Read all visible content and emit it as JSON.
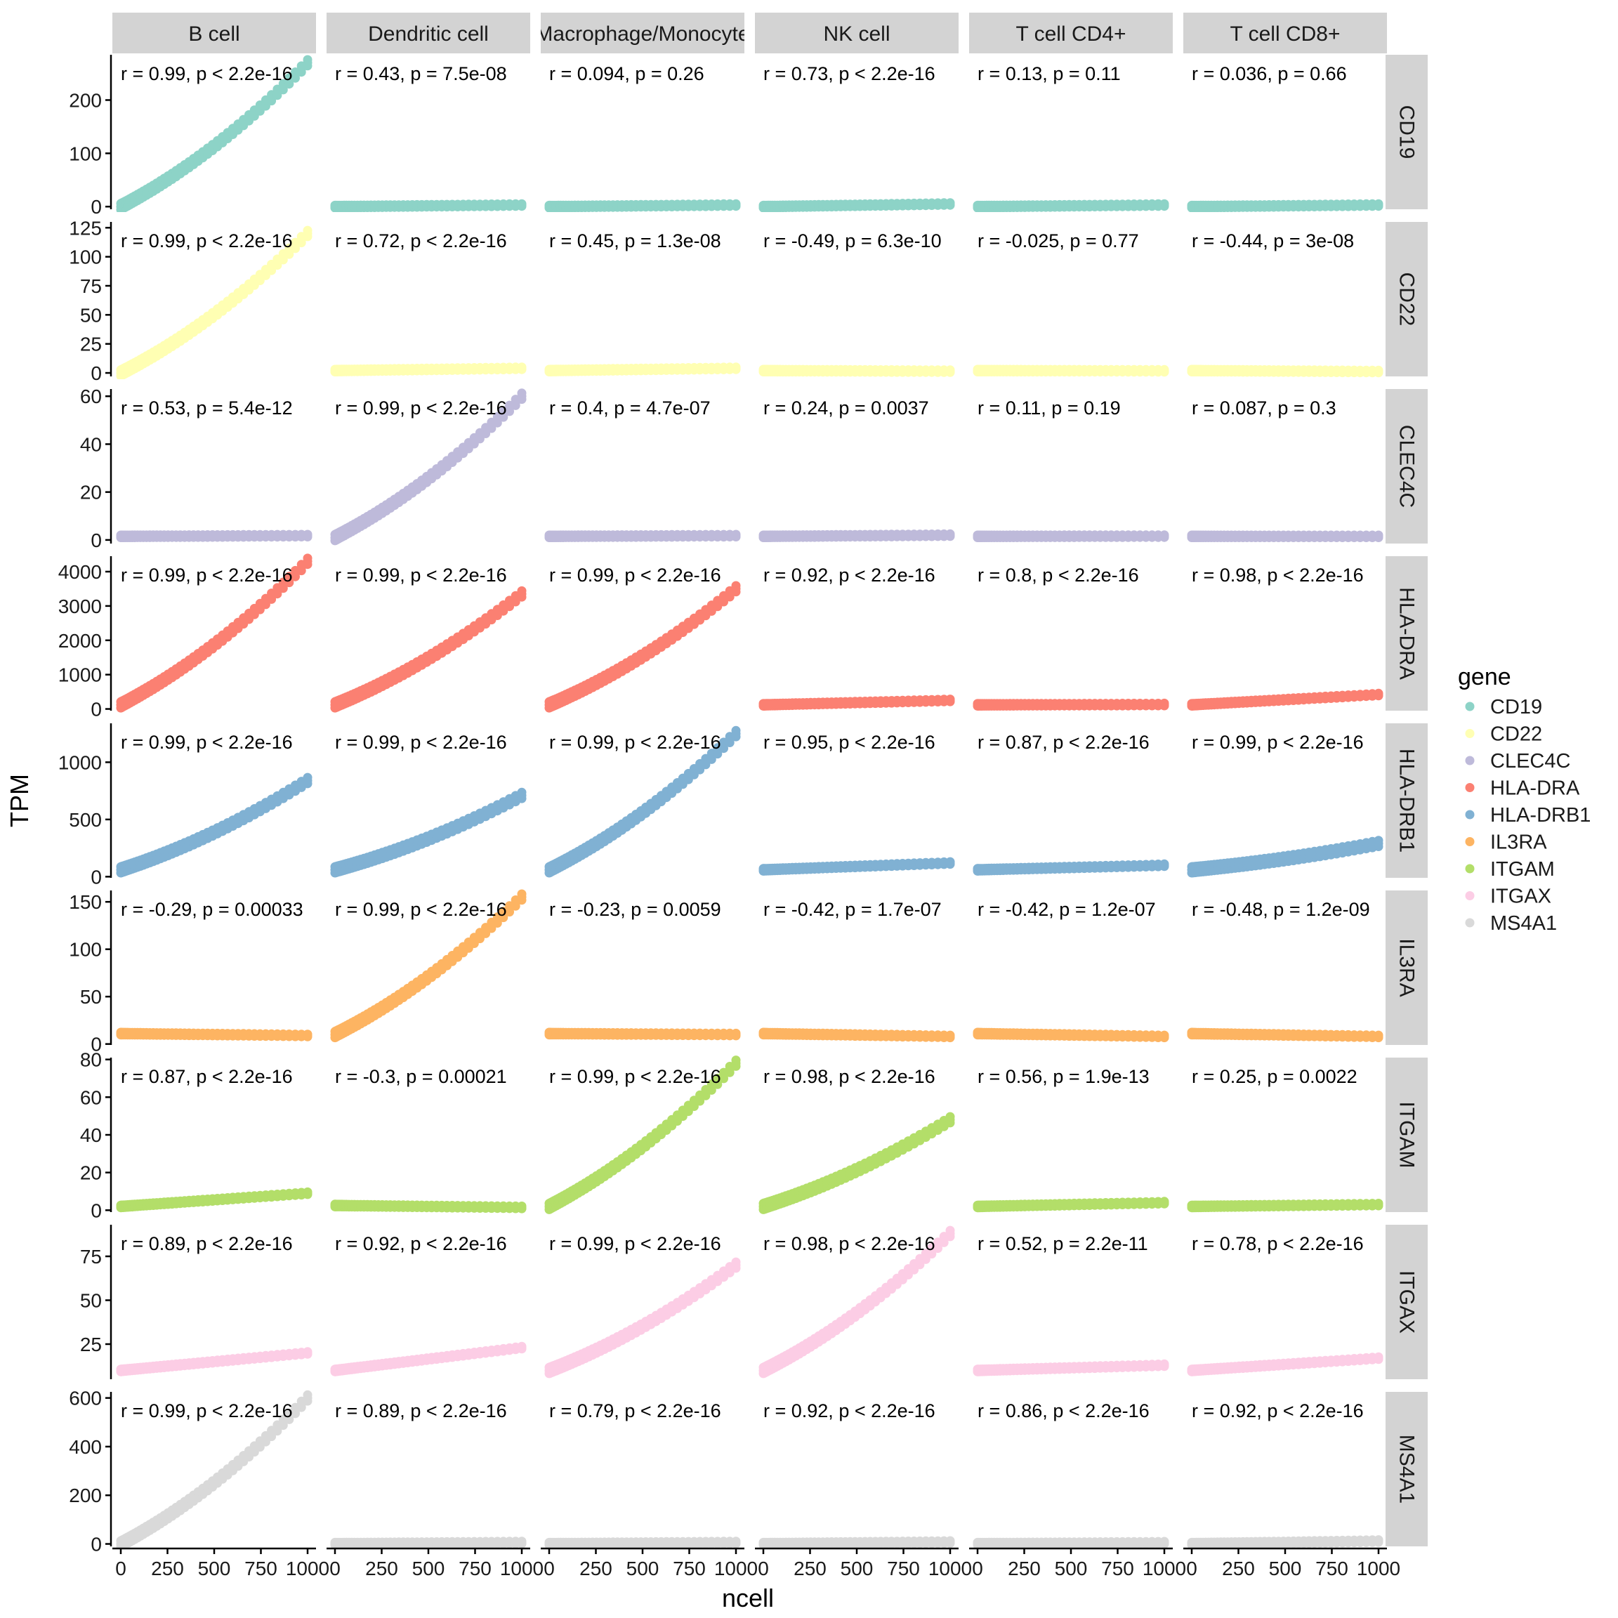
{
  "chart_data": {
    "type": "scatter",
    "xlabel": "ncell",
    "ylabel": "TPM",
    "x_tick_labels": [
      "0",
      "250",
      "500",
      "750",
      "1000"
    ],
    "x_values": [
      0,
      250,
      500,
      750,
      1000
    ],
    "xlim": [
      0,
      1000
    ],
    "legend": {
      "title": "gene",
      "position": "right",
      "entries": [
        "CD19",
        "CD22",
        "CLEC4C",
        "HLA-DRA",
        "HLA-DRB1",
        "IL3RA",
        "ITGAM",
        "ITGAX",
        "MS4A1"
      ],
      "colors": [
        "#8DD3C7",
        "#FFFFB3",
        "#BEBADA",
        "#FB8072",
        "#80B1D3",
        "#FDB462",
        "#B3DE69",
        "#FCCDE5",
        "#D9D9D9"
      ]
    },
    "columns": [
      "B cell",
      "Dendritic cell",
      "Macrophage/Monocyte",
      "NK cell",
      "T cell CD4+",
      "T cell CD8+"
    ],
    "rows": [
      {
        "gene": "CD19",
        "ylim": [
          -5,
          285
        ],
        "yticks": [
          0,
          100,
          200
        ],
        "endpoints": [
          [
            0,
            270
          ],
          [
            0,
            3
          ],
          [
            0,
            3
          ],
          [
            0,
            5
          ],
          [
            0,
            3
          ],
          [
            0,
            3
          ]
        ],
        "annotations": [
          "r = 0.99, p < 2.2e-16",
          "r = 0.43, p = 7.5e-08",
          "r = 0.094, p = 0.26",
          "r = 0.73, p < 2.2e-16",
          "r = 0.13, p = 0.11",
          "r = 0.036, p = 0.66"
        ]
      },
      {
        "gene": "CD22",
        "ylim": [
          -3,
          130
        ],
        "yticks": [
          0,
          25,
          50,
          75,
          100,
          125
        ],
        "endpoints": [
          [
            0,
            120
          ],
          [
            2,
            4
          ],
          [
            2,
            4
          ],
          [
            2,
            1.5
          ],
          [
            2,
            1.8
          ],
          [
            2,
            1.2
          ]
        ],
        "annotations": [
          "r = 0.99, p < 2.2e-16",
          "r = 0.72, p < 2.2e-16",
          "r = 0.45, p = 1.3e-08",
          "r = -0.49, p = 6.3e-10",
          "r = -0.025, p = 0.77",
          "r = -0.44, p = 3e-08"
        ]
      },
      {
        "gene": "CLEC4C",
        "ylim": [
          -1.5,
          63
        ],
        "yticks": [
          0,
          20,
          40,
          60
        ],
        "endpoints": [
          [
            1.5,
            1.8
          ],
          [
            1,
            60
          ],
          [
            1.5,
            1.8
          ],
          [
            1.5,
            2
          ],
          [
            1.5,
            1.6
          ],
          [
            1.5,
            1.5
          ]
        ],
        "annotations": [
          "r = 0.53, p = 5.4e-12",
          "r = 0.99, p < 2.2e-16",
          "r = 0.4, p = 4.7e-07",
          "r = 0.24, p = 0.0037",
          "r = 0.11, p = 0.19",
          "r = 0.087, p = 0.3"
        ]
      },
      {
        "gene": "HLA-DRA",
        "ylim": [
          -50,
          4450
        ],
        "yticks": [
          0,
          1000,
          2000,
          3000,
          4000
        ],
        "endpoints": [
          [
            120,
            4300
          ],
          [
            120,
            3350
          ],
          [
            120,
            3500
          ],
          [
            120,
            250
          ],
          [
            120,
            130
          ],
          [
            120,
            420
          ]
        ],
        "annotations": [
          "r = 0.99, p < 2.2e-16",
          "r = 0.99, p < 2.2e-16",
          "r = 0.99, p < 2.2e-16",
          "r = 0.92, p < 2.2e-16",
          "r = 0.8, p < 2.2e-16",
          "r = 0.98, p < 2.2e-16"
        ]
      },
      {
        "gene": "HLA-DRB1",
        "ylim": [
          -10,
          1340
        ],
        "yticks": [
          0,
          500,
          1000
        ],
        "endpoints": [
          [
            60,
            840
          ],
          [
            60,
            710
          ],
          [
            60,
            1250
          ],
          [
            60,
            120
          ],
          [
            60,
            100
          ],
          [
            60,
            290
          ]
        ],
        "annotations": [
          "r = 0.99, p < 2.2e-16",
          "r = 0.99, p < 2.2e-16",
          "r = 0.99, p < 2.2e-16",
          "r = 0.95, p < 2.2e-16",
          "r = 0.87, p < 2.2e-16",
          "r = 0.99, p < 2.2e-16"
        ]
      },
      {
        "gene": "IL3RA",
        "ylim": [
          -1,
          162
        ],
        "yticks": [
          0,
          50,
          100,
          150
        ],
        "endpoints": [
          [
            11,
            9
          ],
          [
            10,
            155
          ],
          [
            11,
            10
          ],
          [
            11,
            8
          ],
          [
            11,
            8
          ],
          [
            11,
            8
          ]
        ],
        "annotations": [
          "r = -0.29, p = 0.00033",
          "r = 0.99, p < 2.2e-16",
          "r = -0.23, p = 0.0059",
          "r = -0.42, p = 1.7e-07",
          "r = -0.42, p = 1.2e-07",
          "r = -0.48, p = 1.2e-09"
        ]
      },
      {
        "gene": "ITGAM",
        "ylim": [
          -1,
          81
        ],
        "yticks": [
          0,
          20,
          40,
          60,
          80
        ],
        "endpoints": [
          [
            2,
            9
          ],
          [
            2.5,
            1.5
          ],
          [
            2,
            78
          ],
          [
            2,
            48
          ],
          [
            2,
            4
          ],
          [
            2,
            3
          ]
        ],
        "annotations": [
          "r = 0.87, p < 2.2e-16",
          "r = -0.3, p = 0.00021",
          "r = 0.99, p < 2.2e-16",
          "r = 0.98, p < 2.2e-16",
          "r = 0.56, p = 1.9e-13",
          "r = 0.25, p = 0.0022"
        ]
      },
      {
        "gene": "ITGAX",
        "ylim": [
          5,
          93
        ],
        "yticks": [
          25,
          50,
          75
        ],
        "endpoints": [
          [
            10,
            20
          ],
          [
            10,
            23
          ],
          [
            10,
            70
          ],
          [
            10,
            88
          ],
          [
            10,
            13
          ],
          [
            10,
            17
          ]
        ],
        "annotations": [
          "r = 0.89, p < 2.2e-16",
          "r = 0.92, p < 2.2e-16",
          "r = 0.99, p < 2.2e-16",
          "r = 0.98, p < 2.2e-16",
          "r = 0.52, p = 2.2e-11",
          "r = 0.78, p < 2.2e-16"
        ]
      },
      {
        "gene": "MS4A1",
        "ylim": [
          -10,
          625
        ],
        "yticks": [
          0,
          200,
          400,
          600
        ],
        "endpoints": [
          [
            0,
            600
          ],
          [
            1,
            6
          ],
          [
            1,
            6
          ],
          [
            1,
            8
          ],
          [
            1,
            5
          ],
          [
            1,
            12
          ]
        ],
        "annotations": [
          "r = 0.99, p < 2.2e-16",
          "r = 0.89, p < 2.2e-16",
          "r = 0.79, p < 2.2e-16",
          "r = 0.92, p < 2.2e-16",
          "r = 0.86, p < 2.2e-16",
          "r = 0.92, p < 2.2e-16"
        ]
      }
    ]
  }
}
